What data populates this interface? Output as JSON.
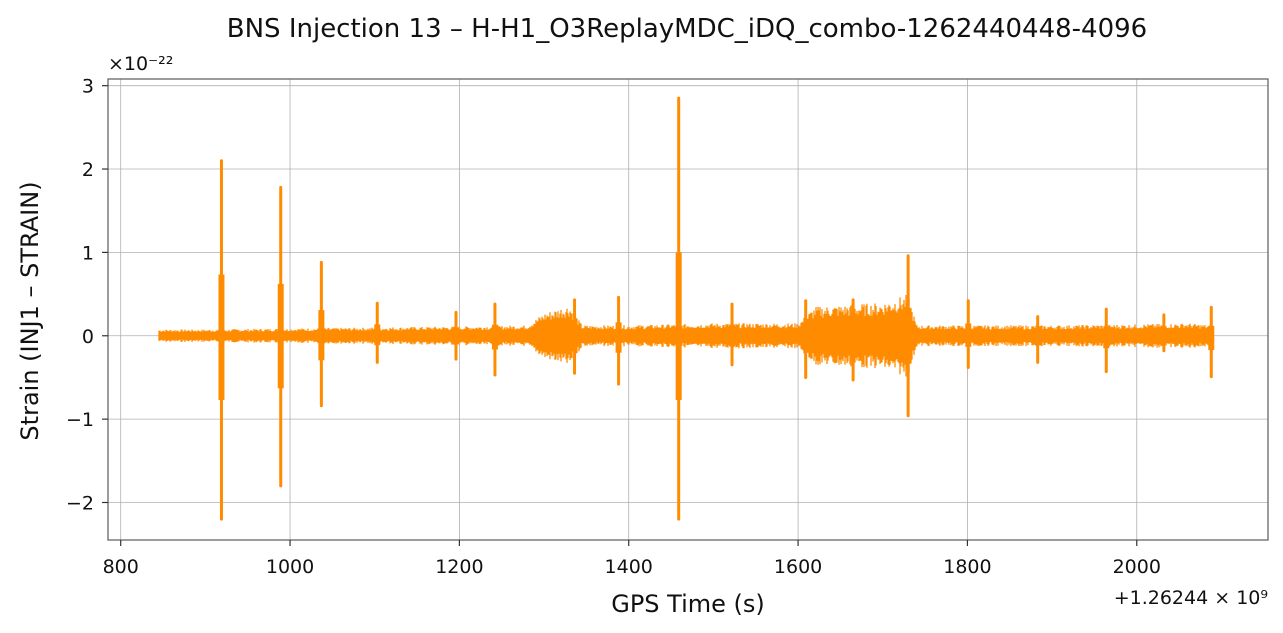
{
  "chart_data": {
    "type": "line",
    "title": "BNS Injection 13 – H-H1_O3ReplayMDC_iDQ_combo-1262440448-4096",
    "xlabel": "GPS Time (s)",
    "ylabel": "Strain (INJ1 – STRAIN)",
    "x_offset_label": "+1.26244 × 10⁹",
    "y_scale_label": "×10⁻²²",
    "xlim": [
      785,
      2155
    ],
    "ylim": [
      -2.45,
      3.08
    ],
    "xticks": [
      800,
      1000,
      1200,
      1400,
      1600,
      1800,
      2000
    ],
    "yticks": [
      -2,
      -1,
      0,
      1,
      2,
      3
    ],
    "grid": true,
    "color": "#ff8c00",
    "series": [
      {
        "x_range": [
          845,
          2090
        ],
        "baseline": {
          "points": [
            [
              845,
              0.06
            ],
            [
              900,
              0.06
            ],
            [
              1000,
              0.07
            ],
            [
              1100,
              0.08
            ],
            [
              1200,
              0.09
            ],
            [
              1280,
              0.1
            ],
            [
              1300,
              0.22
            ],
            [
              1330,
              0.3
            ],
            [
              1345,
              0.1
            ],
            [
              1400,
              0.1
            ],
            [
              1450,
              0.11
            ],
            [
              1500,
              0.12
            ],
            [
              1600,
              0.12
            ],
            [
              1620,
              0.28
            ],
            [
              1700,
              0.32
            ],
            [
              1730,
              0.4
            ],
            [
              1740,
              0.1
            ],
            [
              1800,
              0.1
            ],
            [
              1900,
              0.1
            ],
            [
              2000,
              0.11
            ],
            [
              2060,
              0.12
            ],
            [
              2090,
              0.1
            ]
          ]
        },
        "spikes": [
          {
            "x": 919,
            "max": 2.1,
            "min": -2.2
          },
          {
            "x": 989,
            "max": 1.78,
            "min": -1.8
          },
          {
            "x": 1037,
            "max": 0.88,
            "min": -0.84
          },
          {
            "x": 1103,
            "max": 0.39,
            "min": -0.32
          },
          {
            "x": 1196,
            "max": 0.28,
            "min": -0.28
          },
          {
            "x": 1242,
            "max": 0.38,
            "min": -0.47
          },
          {
            "x": 1336,
            "max": 0.43,
            "min": -0.45
          },
          {
            "x": 1388,
            "max": 0.46,
            "min": -0.58
          },
          {
            "x": 1459,
            "max": 2.85,
            "min": -2.2
          },
          {
            "x": 1522,
            "max": 0.38,
            "min": -0.35
          },
          {
            "x": 1609,
            "max": 0.42,
            "min": -0.5
          },
          {
            "x": 1665,
            "max": 0.43,
            "min": -0.53
          },
          {
            "x": 1730,
            "max": 0.96,
            "min": -0.96
          },
          {
            "x": 1801,
            "max": 0.42,
            "min": -0.38
          },
          {
            "x": 1883,
            "max": 0.23,
            "min": -0.32
          },
          {
            "x": 1964,
            "max": 0.32,
            "min": -0.43
          },
          {
            "x": 2032,
            "max": 0.25,
            "min": -0.18
          },
          {
            "x": 2088,
            "max": 0.34,
            "min": -0.49
          }
        ]
      }
    ]
  }
}
